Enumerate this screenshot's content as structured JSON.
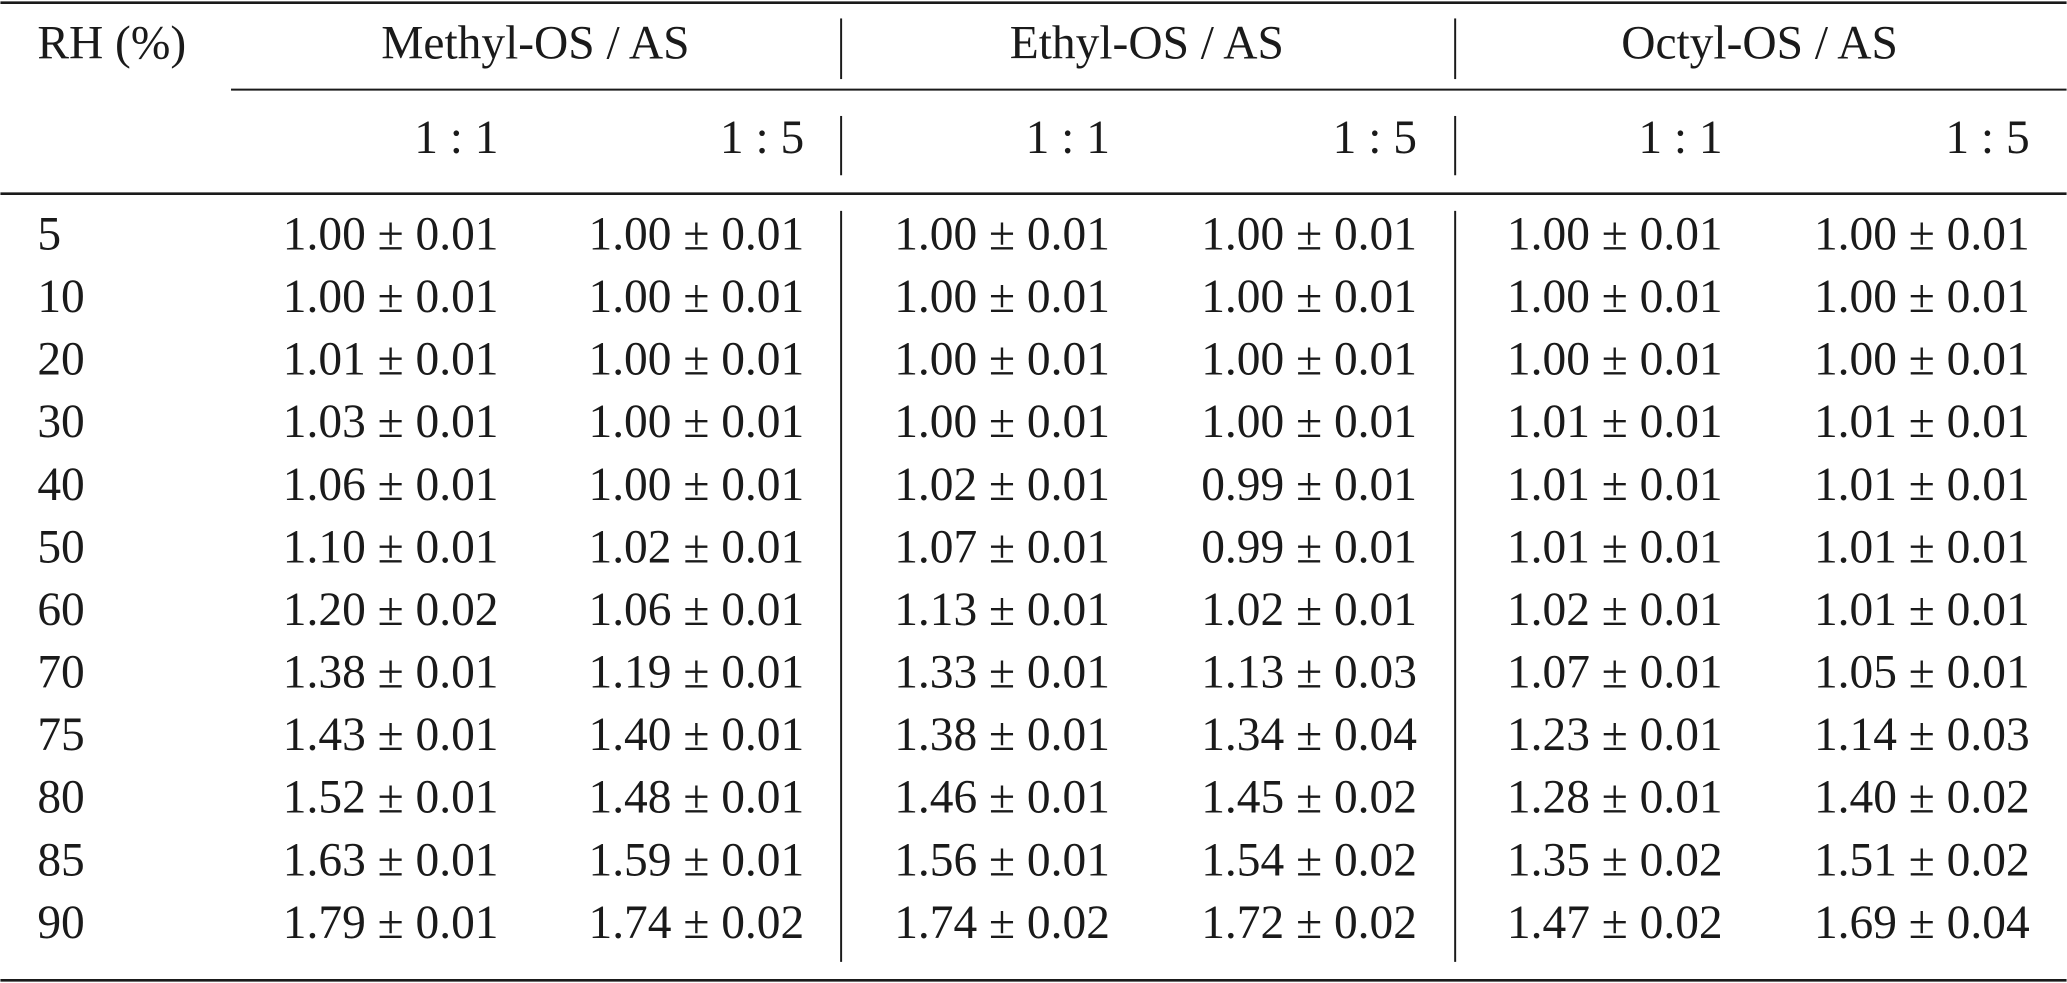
{
  "table": {
    "rh_label": "RH (%)",
    "groups": [
      "Methyl-OS / AS",
      "Ethyl-OS / AS",
      "Octyl-OS / AS"
    ],
    "ratios": [
      "1 : 1",
      "1 : 5",
      "1 : 1",
      "1 : 5",
      "1 : 1",
      "1 : 5"
    ],
    "rows": [
      {
        "rh": "5",
        "cells": [
          "1.00 ± 0.01",
          "1.00 ± 0.01",
          "1.00 ± 0.01",
          "1.00 ± 0.01",
          "1.00 ± 0.01",
          "1.00 ± 0.01"
        ]
      },
      {
        "rh": "10",
        "cells": [
          "1.00 ± 0.01",
          "1.00 ± 0.01",
          "1.00 ± 0.01",
          "1.00 ± 0.01",
          "1.00 ± 0.01",
          "1.00 ± 0.01"
        ]
      },
      {
        "rh": "20",
        "cells": [
          "1.01 ± 0.01",
          "1.00 ± 0.01",
          "1.00 ± 0.01",
          "1.00 ± 0.01",
          "1.00 ± 0.01",
          "1.00 ± 0.01"
        ]
      },
      {
        "rh": "30",
        "cells": [
          "1.03 ± 0.01",
          "1.00 ± 0.01",
          "1.00 ± 0.01",
          "1.00 ± 0.01",
          "1.01 ± 0.01",
          "1.01 ± 0.01"
        ]
      },
      {
        "rh": "40",
        "cells": [
          "1.06 ± 0.01",
          "1.00 ± 0.01",
          "1.02 ± 0.01",
          "0.99 ± 0.01",
          "1.01 ± 0.01",
          "1.01 ± 0.01"
        ]
      },
      {
        "rh": "50",
        "cells": [
          "1.10 ± 0.01",
          "1.02 ± 0.01",
          "1.07 ± 0.01",
          "0.99 ± 0.01",
          "1.01 ± 0.01",
          "1.01 ± 0.01"
        ]
      },
      {
        "rh": "60",
        "cells": [
          "1.20 ± 0.02",
          "1.06 ± 0.01",
          "1.13 ± 0.01",
          "1.02 ± 0.01",
          "1.02 ± 0.01",
          "1.01 ± 0.01"
        ]
      },
      {
        "rh": "70",
        "cells": [
          "1.38 ± 0.01",
          "1.19 ± 0.01",
          "1.33 ± 0.01",
          "1.13 ± 0.03",
          "1.07 ± 0.01",
          "1.05 ± 0.01"
        ]
      },
      {
        "rh": "75",
        "cells": [
          "1.43 ± 0.01",
          "1.40 ± 0.01",
          "1.38 ± 0.01",
          "1.34 ± 0.04",
          "1.23 ± 0.01",
          "1.14 ± 0.03"
        ]
      },
      {
        "rh": "80",
        "cells": [
          "1.52 ± 0.01",
          "1.48 ± 0.01",
          "1.46 ± 0.01",
          "1.45 ± 0.02",
          "1.28 ± 0.01",
          "1.40 ± 0.02"
        ]
      },
      {
        "rh": "85",
        "cells": [
          "1.63 ± 0.01",
          "1.59 ± 0.01",
          "1.56 ± 0.01",
          "1.54 ± 0.02",
          "1.35 ± 0.02",
          "1.51 ± 0.02"
        ]
      },
      {
        "rh": "90",
        "cells": [
          "1.79 ± 0.01",
          "1.74 ± 0.02",
          "1.74 ± 0.02",
          "1.72 ± 0.02",
          "1.47 ± 0.02",
          "1.69 ± 0.04"
        ]
      }
    ]
  }
}
